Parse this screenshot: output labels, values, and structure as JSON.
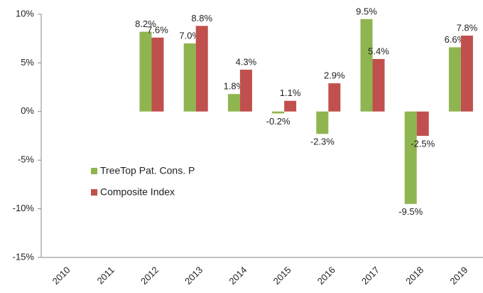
{
  "chart_data": {
    "type": "bar",
    "categories": [
      "2010",
      "2011",
      "2012",
      "2013",
      "2014",
      "2015",
      "2016",
      "2017",
      "2018",
      "2019"
    ],
    "series": [
      {
        "name": "TreeTop Pat. Cons. P",
        "color": "#8fb550",
        "values": [
          null,
          null,
          8.2,
          7.0,
          1.8,
          -0.2,
          -2.3,
          9.5,
          -9.5,
          6.6
        ],
        "value_labels": [
          null,
          null,
          "8.2%",
          "7.0%",
          "1.8%",
          "-0.2%",
          "-2.3%",
          "9.5%",
          "-9.5%",
          "6.6%"
        ]
      },
      {
        "name": "Composite Index",
        "color": "#c0504d",
        "values": [
          null,
          null,
          7.6,
          8.8,
          4.3,
          1.1,
          2.9,
          5.4,
          -2.5,
          7.8
        ],
        "value_labels": [
          null,
          null,
          "7.6%",
          "8.8%",
          "4.3%",
          "1.1%",
          "2.9%",
          "5.4%",
          "-2.5%",
          "7.8%"
        ]
      }
    ],
    "ylim": [
      -15,
      10
    ],
    "yticks": [
      {
        "value": -15,
        "label": "-15%"
      },
      {
        "value": -10,
        "label": "-10%"
      },
      {
        "value": -5,
        "label": "-5%"
      },
      {
        "value": 0,
        "label": "0%"
      },
      {
        "value": 5,
        "label": "5%"
      },
      {
        "value": 10,
        "label": "10%"
      }
    ],
    "legend": "center-left",
    "grid": false
  }
}
